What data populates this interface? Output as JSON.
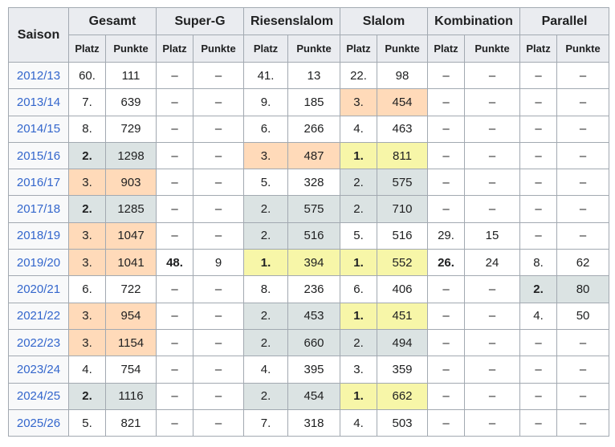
{
  "headers": {
    "saison": "Saison",
    "groups": [
      "Gesamt",
      "Super-G",
      "Riesenslalom",
      "Slalom",
      "Kombination",
      "Parallel"
    ],
    "platz": "Platz",
    "punkte": "Punkte"
  },
  "colors": {
    "orange": "#ffdab9",
    "gray": "#dbe3e3",
    "yellow": "#f7f6a8",
    "link": "#3366cc",
    "header_bg": "#eaecf0"
  },
  "rows": [
    {
      "season": "2012/13",
      "cells": [
        {
          "p": "60.",
          "v": "111"
        },
        {
          "p": "–",
          "v": "–"
        },
        {
          "p": "41.",
          "v": "13"
        },
        {
          "p": "22.",
          "v": "98"
        },
        {
          "p": "–",
          "v": "–"
        },
        {
          "p": "–",
          "v": "–"
        }
      ]
    },
    {
      "season": "2013/14",
      "cells": [
        {
          "p": "7.",
          "v": "639"
        },
        {
          "p": "–",
          "v": "–"
        },
        {
          "p": "9.",
          "v": "185"
        },
        {
          "p": "3.",
          "v": "454",
          "c": "orange"
        },
        {
          "p": "–",
          "v": "–"
        },
        {
          "p": "–",
          "v": "–"
        }
      ]
    },
    {
      "season": "2014/15",
      "cells": [
        {
          "p": "8.",
          "v": "729"
        },
        {
          "p": "–",
          "v": "–"
        },
        {
          "p": "6.",
          "v": "266"
        },
        {
          "p": "4.",
          "v": "463"
        },
        {
          "p": "–",
          "v": "–"
        },
        {
          "p": "–",
          "v": "–"
        }
      ]
    },
    {
      "season": "2015/16",
      "cells": [
        {
          "p": "2.",
          "v": "1298",
          "c": "gray",
          "b": true
        },
        {
          "p": "–",
          "v": "–"
        },
        {
          "p": "3.",
          "v": "487",
          "c": "orange"
        },
        {
          "p": "1.",
          "v": "811",
          "c": "yellow",
          "b": true
        },
        {
          "p": "–",
          "v": "–"
        },
        {
          "p": "–",
          "v": "–"
        }
      ]
    },
    {
      "season": "2016/17",
      "cells": [
        {
          "p": "3.",
          "v": "903",
          "c": "orange"
        },
        {
          "p": "–",
          "v": "–"
        },
        {
          "p": "5.",
          "v": "328"
        },
        {
          "p": "2.",
          "v": "575",
          "c": "gray"
        },
        {
          "p": "–",
          "v": "–"
        },
        {
          "p": "–",
          "v": "–"
        }
      ]
    },
    {
      "season": "2017/18",
      "cells": [
        {
          "p": "2.",
          "v": "1285",
          "c": "gray",
          "b": true
        },
        {
          "p": "–",
          "v": "–"
        },
        {
          "p": "2.",
          "v": "575",
          "c": "gray"
        },
        {
          "p": "2.",
          "v": "710",
          "c": "gray"
        },
        {
          "p": "–",
          "v": "–"
        },
        {
          "p": "–",
          "v": "–"
        }
      ]
    },
    {
      "season": "2018/19",
      "cells": [
        {
          "p": "3.",
          "v": "1047",
          "c": "orange"
        },
        {
          "p": "–",
          "v": "–"
        },
        {
          "p": "2.",
          "v": "516",
          "c": "gray"
        },
        {
          "p": "5.",
          "v": "516"
        },
        {
          "p": "29.",
          "v": "15"
        },
        {
          "p": "–",
          "v": "–"
        }
      ]
    },
    {
      "season": "2019/20",
      "cells": [
        {
          "p": "3.",
          "v": "1041",
          "c": "orange"
        },
        {
          "p": "48.",
          "v": "9",
          "b": true
        },
        {
          "p": "1.",
          "v": "394",
          "c": "yellow",
          "b": true
        },
        {
          "p": "1.",
          "v": "552",
          "c": "yellow",
          "b": true
        },
        {
          "p": "26.",
          "v": "24",
          "b": true
        },
        {
          "p": "8.",
          "v": "62"
        }
      ]
    },
    {
      "season": "2020/21",
      "cells": [
        {
          "p": "6.",
          "v": "722"
        },
        {
          "p": "–",
          "v": "–"
        },
        {
          "p": "8.",
          "v": "236"
        },
        {
          "p": "6.",
          "v": "406"
        },
        {
          "p": "–",
          "v": "–"
        },
        {
          "p": "2.",
          "v": "80",
          "c": "gray",
          "b": true
        }
      ]
    },
    {
      "season": "2021/22",
      "cells": [
        {
          "p": "3.",
          "v": "954",
          "c": "orange"
        },
        {
          "p": "–",
          "v": "–"
        },
        {
          "p": "2.",
          "v": "453",
          "c": "gray"
        },
        {
          "p": "1.",
          "v": "451",
          "c": "yellow",
          "b": true
        },
        {
          "p": "–",
          "v": "–"
        },
        {
          "p": "4.",
          "v": "50"
        }
      ]
    },
    {
      "season": "2022/23",
      "cells": [
        {
          "p": "3.",
          "v": "1154",
          "c": "orange"
        },
        {
          "p": "–",
          "v": "–"
        },
        {
          "p": "2.",
          "v": "660",
          "c": "gray"
        },
        {
          "p": "2.",
          "v": "494",
          "c": "gray"
        },
        {
          "p": "–",
          "v": "–"
        },
        {
          "p": "–",
          "v": "–"
        }
      ]
    },
    {
      "season": "2023/24",
      "cells": [
        {
          "p": "4.",
          "v": "754"
        },
        {
          "p": "–",
          "v": "–"
        },
        {
          "p": "4.",
          "v": "395"
        },
        {
          "p": "3.",
          "v": "359"
        },
        {
          "p": "–",
          "v": "–"
        },
        {
          "p": "–",
          "v": "–"
        }
      ]
    },
    {
      "season": "2024/25",
      "cells": [
        {
          "p": "2.",
          "v": "1116",
          "c": "gray",
          "b": true
        },
        {
          "p": "–",
          "v": "–"
        },
        {
          "p": "2.",
          "v": "454",
          "c": "gray"
        },
        {
          "p": "1.",
          "v": "662",
          "c": "yellow",
          "b": true
        },
        {
          "p": "–",
          "v": "–"
        },
        {
          "p": "–",
          "v": "–"
        }
      ]
    },
    {
      "season": "2025/26",
      "cells": [
        {
          "p": "5.",
          "v": "821"
        },
        {
          "p": "–",
          "v": "–"
        },
        {
          "p": "7.",
          "v": "318"
        },
        {
          "p": "4.",
          "v": "503"
        },
        {
          "p": "–",
          "v": "–"
        },
        {
          "p": "–",
          "v": "–"
        }
      ]
    }
  ]
}
